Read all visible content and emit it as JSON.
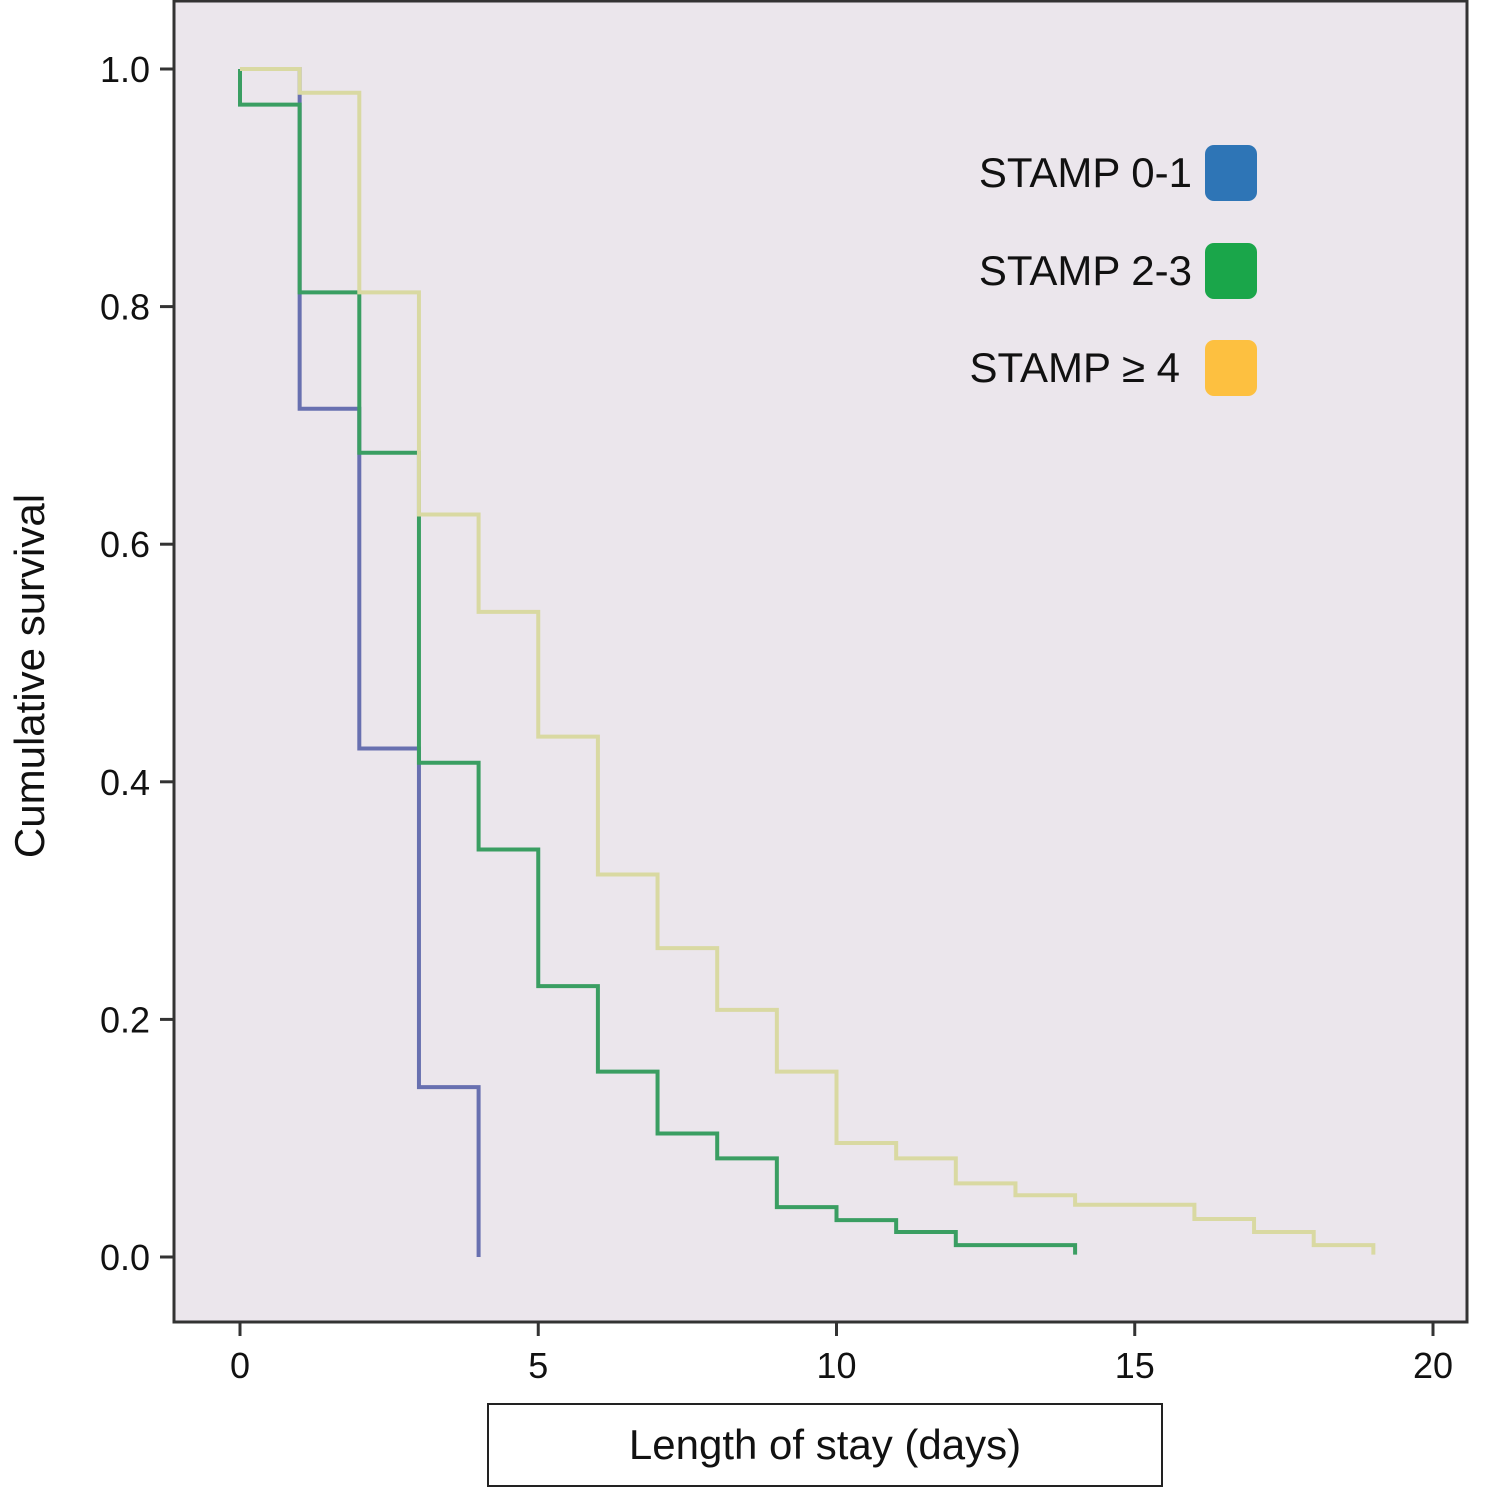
{
  "chart_data": {
    "type": "line",
    "subtype": "kaplan-meier step",
    "title": "",
    "xlabel": "Length of stay (days)",
    "ylabel": "Cumulative survival",
    "xlim": [
      -1.1,
      20.6
    ],
    "ylim": [
      -0.055,
      1.057
    ],
    "xticks": [
      0,
      5,
      10,
      15,
      20
    ],
    "yticks": [
      "0.0",
      "0.2",
      "0.4",
      "0.6",
      "0.8",
      "1.0"
    ],
    "grid": false,
    "legend_position": "top-right",
    "background": "#ebe6ec",
    "series": [
      {
        "name": "STAMP 0-1",
        "color": "#2e75b6",
        "line_color": "#6870b0",
        "x": [
          0,
          1,
          2,
          3,
          4
        ],
        "y": [
          1.0,
          0.714,
          0.428,
          0.143,
          0.0
        ],
        "end": 4
      },
      {
        "name": "STAMP 2-3",
        "color": "#1aa64a",
        "line_color": "#3a9e62",
        "x": [
          0,
          1,
          2,
          3,
          4,
          5,
          6,
          7,
          8,
          9,
          10,
          11,
          12
        ],
        "y": [
          0.97,
          0.812,
          0.677,
          0.416,
          0.343,
          0.228,
          0.156,
          0.104,
          0.083,
          0.042,
          0.031,
          0.021,
          0.01
        ],
        "y0": 1.0,
        "end": 14,
        "y_end": 0.0
      },
      {
        "name": "STAMP ≥ 4",
        "color": "#fdc040",
        "line_color": "#d9d9a2",
        "x": [
          0,
          1,
          2,
          3,
          4,
          5,
          6,
          7,
          8,
          9,
          10,
          11,
          12,
          13,
          14,
          16,
          17,
          18
        ],
        "y": [
          1.0,
          0.98,
          0.812,
          0.625,
          0.543,
          0.438,
          0.322,
          0.26,
          0.208,
          0.156,
          0.096,
          0.083,
          0.062,
          0.052,
          0.044,
          0.032,
          0.021,
          0.01
        ],
        "end": 19,
        "y_end": 0.0
      }
    ]
  }
}
